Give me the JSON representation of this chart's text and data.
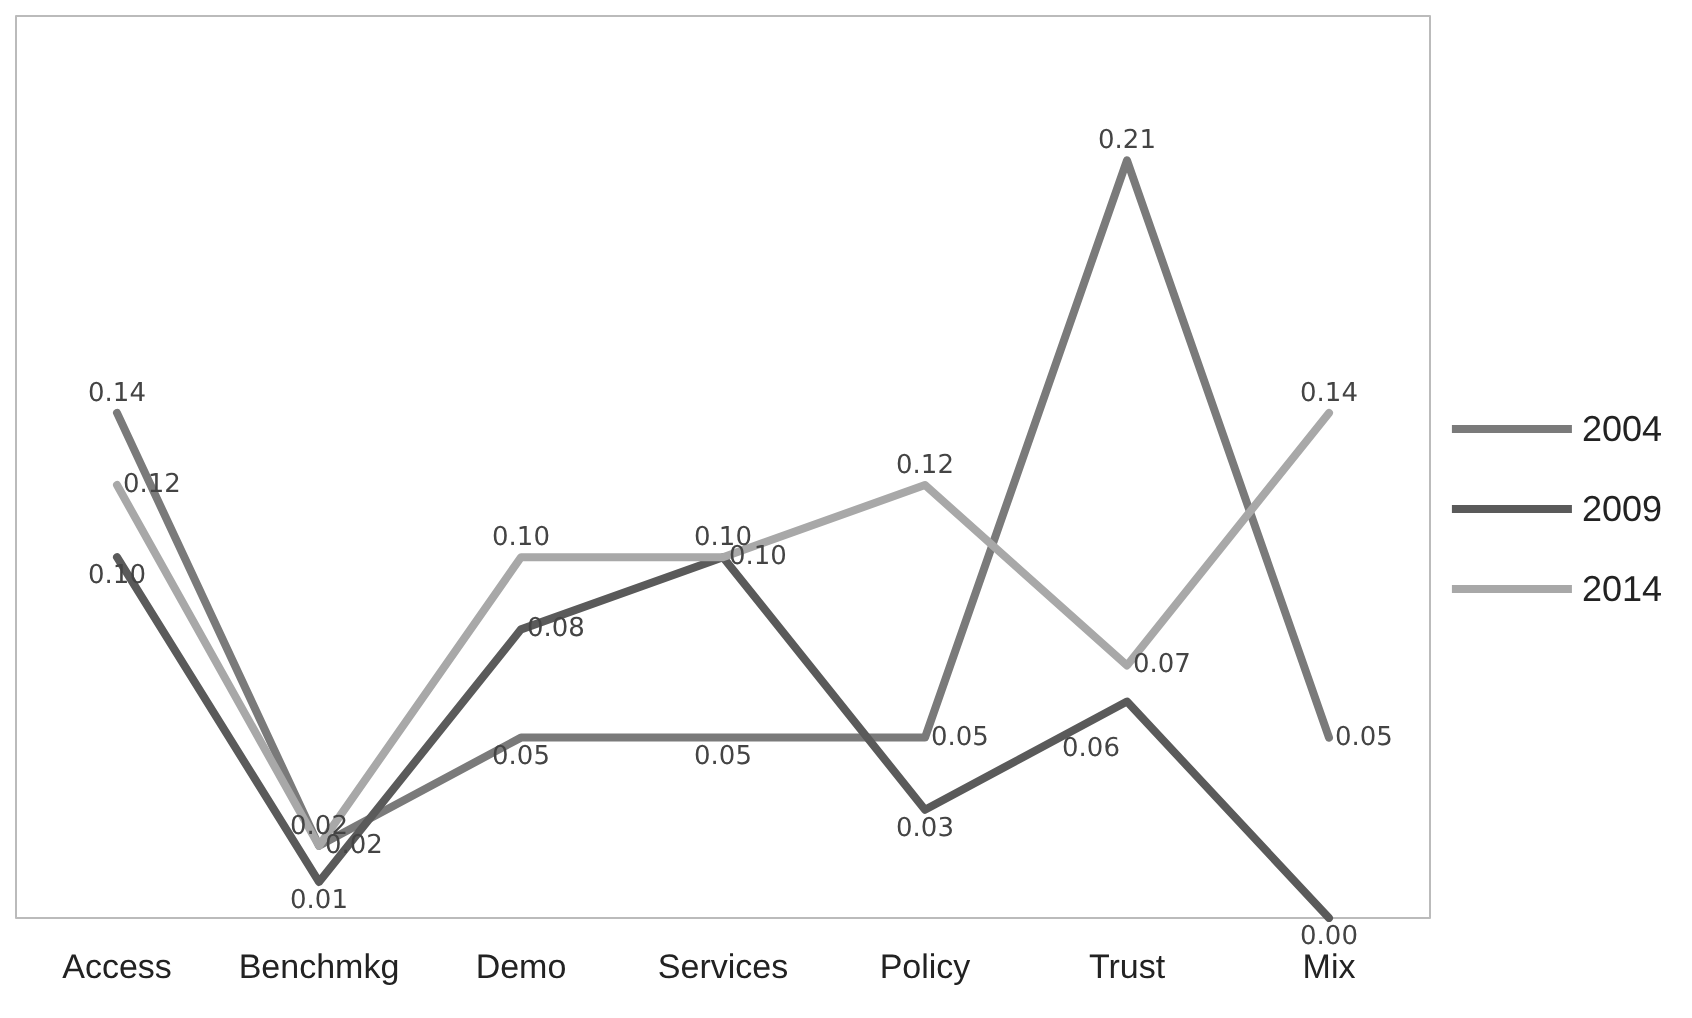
{
  "chart_data": {
    "type": "line",
    "categories": [
      "Access",
      "Benchmkg",
      "Demo",
      "Services",
      "Policy",
      "Trust",
      "Mix"
    ],
    "series": [
      {
        "name": "2004",
        "color": "#7a7a7a",
        "values": [
          0.14,
          0.02,
          0.05,
          0.05,
          0.05,
          0.21,
          0.05
        ],
        "value_labels": [
          "0.14",
          "0.02",
          "0.05",
          "0.05",
          "0.05",
          "0.21",
          "0.05"
        ]
      },
      {
        "name": "2009",
        "color": "#5a5a5a",
        "values": [
          0.1,
          0.01,
          0.08,
          0.1,
          0.03,
          0.06,
          0.0
        ],
        "value_labels": [
          "0.10",
          "0.01",
          "0.08",
          "0.10",
          "0.03",
          "0.06",
          "0.00"
        ]
      },
      {
        "name": "2014",
        "color": "#a8a8a8",
        "values": [
          0.12,
          0.02,
          0.1,
          0.1,
          0.12,
          0.07,
          0.14
        ],
        "value_labels": [
          "0.12",
          "0.02",
          "0.10",
          "0.10",
          "0.12",
          "0.07",
          "0.14"
        ]
      }
    ],
    "legend": "right",
    "grid": false,
    "marker": "none"
  }
}
